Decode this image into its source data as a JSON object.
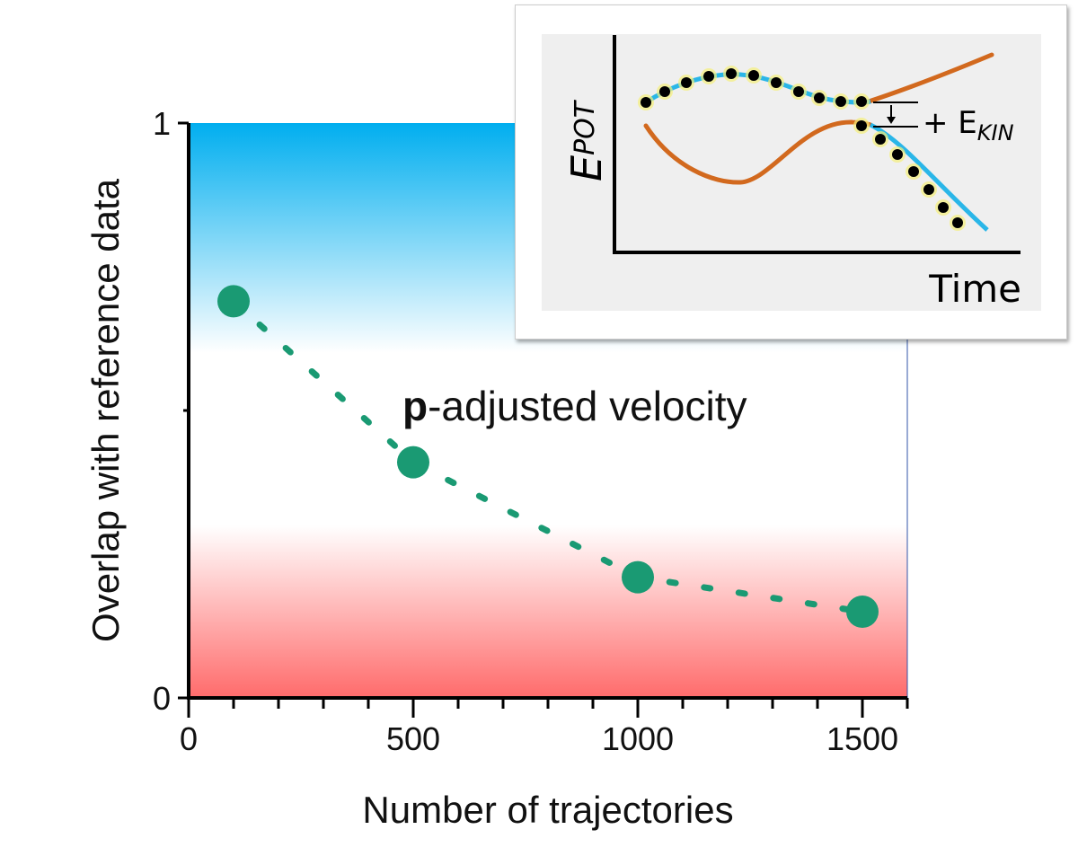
{
  "chart_data": {
    "type": "scatter",
    "xlabel": "Number of trajectories",
    "ylabel": "Overlap with reference data",
    "xlim": [
      0,
      1600
    ],
    "ylim": [
      0,
      1
    ],
    "x_ticks": [
      0,
      500,
      1000,
      1500
    ],
    "y_ticks": [
      0,
      1
    ],
    "x_minor_tick_step": 100,
    "y_minor_ticks": [
      0.5
    ],
    "grid": false,
    "annotation": {
      "bold": "p",
      "rest": "-adjusted velocity"
    },
    "series": [
      {
        "x": [
          100,
          500,
          1000,
          1500
        ],
        "y": [
          0.69,
          0.41,
          0.21,
          0.15
        ],
        "color": "#1a9a73",
        "line": "dotted"
      }
    ],
    "background_gradient": {
      "top": "#00aeef",
      "middle": "#ffffff",
      "bottom": "#ff6b6b"
    },
    "inset": {
      "ylabel": "E",
      "ylabel_sub": "POT",
      "xlabel": "Time",
      "annotation": "+ E",
      "annotation_sub": "KIN",
      "colors": {
        "trajectory": "#2ab6e8",
        "surface": "#d2691e",
        "dots": "#000000",
        "glow": "#f5f07a"
      }
    }
  }
}
